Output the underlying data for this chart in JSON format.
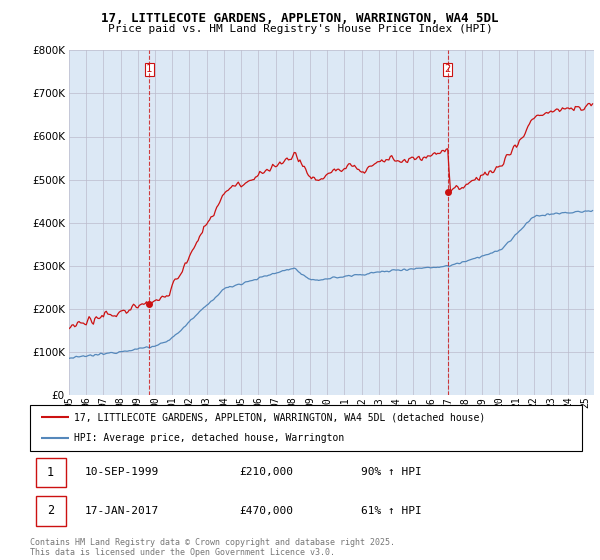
{
  "title1": "17, LITTLECOTE GARDENS, APPLETON, WARRINGTON, WA4 5DL",
  "title2": "Price paid vs. HM Land Registry's House Price Index (HPI)",
  "legend_label1": "17, LITTLECOTE GARDENS, APPLETON, WARRINGTON, WA4 5DL (detached house)",
  "legend_label2": "HPI: Average price, detached house, Warrington",
  "transaction1_date": "10-SEP-1999",
  "transaction1_price": "£210,000",
  "transaction1_hpi": "90% ↑ HPI",
  "transaction2_date": "17-JAN-2017",
  "transaction2_price": "£470,000",
  "transaction2_hpi": "61% ↑ HPI",
  "line1_color": "#cc1111",
  "line2_color": "#5588bb",
  "vline_color": "#cc1111",
  "plot_bg_color": "#dce8f5",
  "ylim": [
    0,
    800000
  ],
  "yticks": [
    0,
    100000,
    200000,
    300000,
    400000,
    500000,
    600000,
    700000,
    800000
  ],
  "copyright": "Contains HM Land Registry data © Crown copyright and database right 2025.\nThis data is licensed under the Open Government Licence v3.0.",
  "background_color": "#ffffff",
  "grid_color": "#bbbbcc"
}
